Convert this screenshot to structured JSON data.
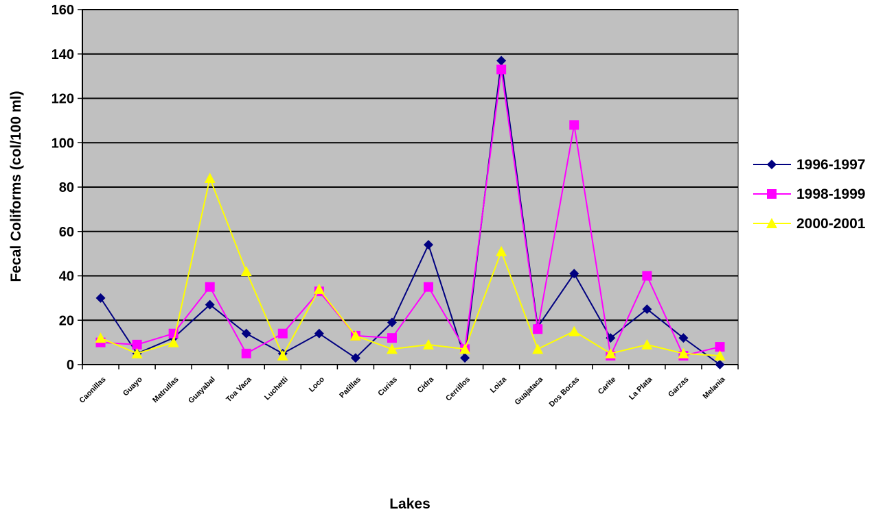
{
  "chart_data": {
    "type": "line",
    "title": "",
    "xlabel": "Lakes",
    "ylabel": "Fecal Coliforms (col/100 ml)",
    "ylim": [
      0,
      160
    ],
    "yticks": [
      0,
      20,
      40,
      60,
      80,
      100,
      120,
      140,
      160
    ],
    "grid": true,
    "legend_position": "right",
    "plot_background": "#c0c0c0",
    "categories": [
      "Caonillas",
      "Guayo",
      "Matrullas",
      "Guayabal",
      "Toa Vaca",
      "Luchetti",
      "Loco",
      "Patillas",
      "Curias",
      "Cidra",
      "Cerrillos",
      "Loiza",
      "Guajataca",
      "Dos Bocas",
      "Carite",
      "La Plata",
      "Garzas",
      "Melania"
    ],
    "series": [
      {
        "name": "1996-1997",
        "color": "#000080",
        "marker": "diamond",
        "values": [
          30,
          5,
          12,
          27,
          14,
          5,
          14,
          3,
          19,
          54,
          3,
          137,
          17,
          41,
          12,
          25,
          12,
          0
        ]
      },
      {
        "name": "1998-1999",
        "color": "#ff00ff",
        "marker": "square",
        "values": [
          10,
          9,
          14,
          35,
          5,
          14,
          33,
          13,
          12,
          35,
          7,
          133,
          16,
          108,
          4,
          40,
          4,
          8
        ]
      },
      {
        "name": "2000-2001",
        "color": "#ffff00",
        "marker": "triangle",
        "values": [
          12,
          5,
          10,
          84,
          42,
          4,
          34,
          13,
          7,
          9,
          7,
          51,
          7,
          15,
          5,
          9,
          5,
          4
        ]
      }
    ]
  }
}
